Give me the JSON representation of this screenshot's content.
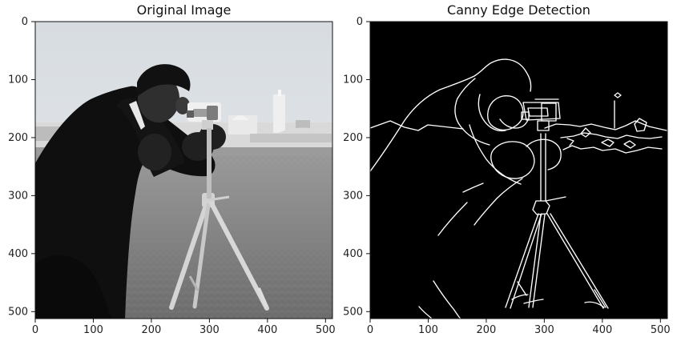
{
  "figure": {
    "panels": [
      {
        "id": "original",
        "title": "Original Image",
        "x_ticks": [
          "0",
          "100",
          "200",
          "300",
          "400",
          "500"
        ],
        "y_ticks": [
          "0",
          "100",
          "200",
          "300",
          "400",
          "500"
        ],
        "x_range": [
          0,
          512
        ],
        "y_range": [
          0,
          512
        ]
      },
      {
        "id": "canny",
        "title": "Canny Edge Detection",
        "x_ticks": [
          "0",
          "100",
          "200",
          "300",
          "400",
          "500"
        ],
        "y_ticks": [
          "0",
          "100",
          "200",
          "300",
          "400",
          "500"
        ],
        "x_range": [
          0,
          512
        ],
        "y_range": [
          0,
          512
        ]
      }
    ]
  },
  "colors": {
    "background": "#ffffff",
    "axis": "#111111",
    "original_sky": "#d8dde2",
    "original_ground": "#7f7f7f",
    "original_coat": "#111111",
    "original_face": "#2b2b2b",
    "original_tripod": "#c8c8c8",
    "edge_background": "#000000",
    "edge_line": "#ffffff"
  }
}
